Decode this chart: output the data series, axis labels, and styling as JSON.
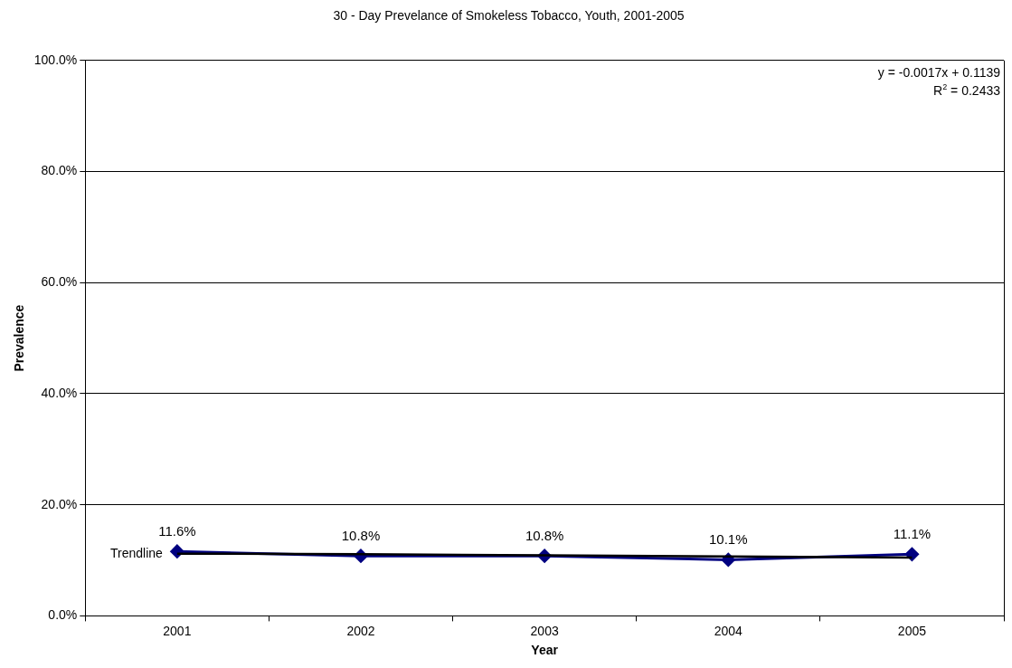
{
  "chart_data": {
    "type": "line",
    "title": "30 - Day Prevelance of Smokeless Tobacco, Youth, 2001-2005",
    "xlabel": "Year",
    "ylabel": "Prevalence",
    "categories": [
      "2001",
      "2002",
      "2003",
      "2004",
      "2005"
    ],
    "series": [
      {
        "name": null,
        "color": "#000080",
        "values": [
          11.6,
          10.8,
          10.8,
          10.1,
          11.1
        ],
        "value_labels": [
          "11.6%",
          "10.8%",
          "10.8%",
          "10.1%",
          "11.1%"
        ],
        "marker": "diamond"
      },
      {
        "name": "Trendline",
        "color": "#000000",
        "values": [
          11.2,
          11.1,
          10.9,
          10.7,
          10.5
        ],
        "marker": "none"
      }
    ],
    "ylim": [
      0,
      100
    ],
    "yticks": [
      {
        "value": 0,
        "label": "0.0%"
      },
      {
        "value": 20,
        "label": "20.0%"
      },
      {
        "value": 40,
        "label": "40.0%"
      },
      {
        "value": 60,
        "label": "60.0%"
      },
      {
        "value": 80,
        "label": "80.0%"
      },
      {
        "value": 100,
        "label": "100.0%"
      }
    ],
    "grid": "y",
    "legend": false,
    "line_style": "solid",
    "annotations": [
      "y = -0.0017x + 0.1139",
      "R$^{2}$ = 0.2433"
    ]
  }
}
